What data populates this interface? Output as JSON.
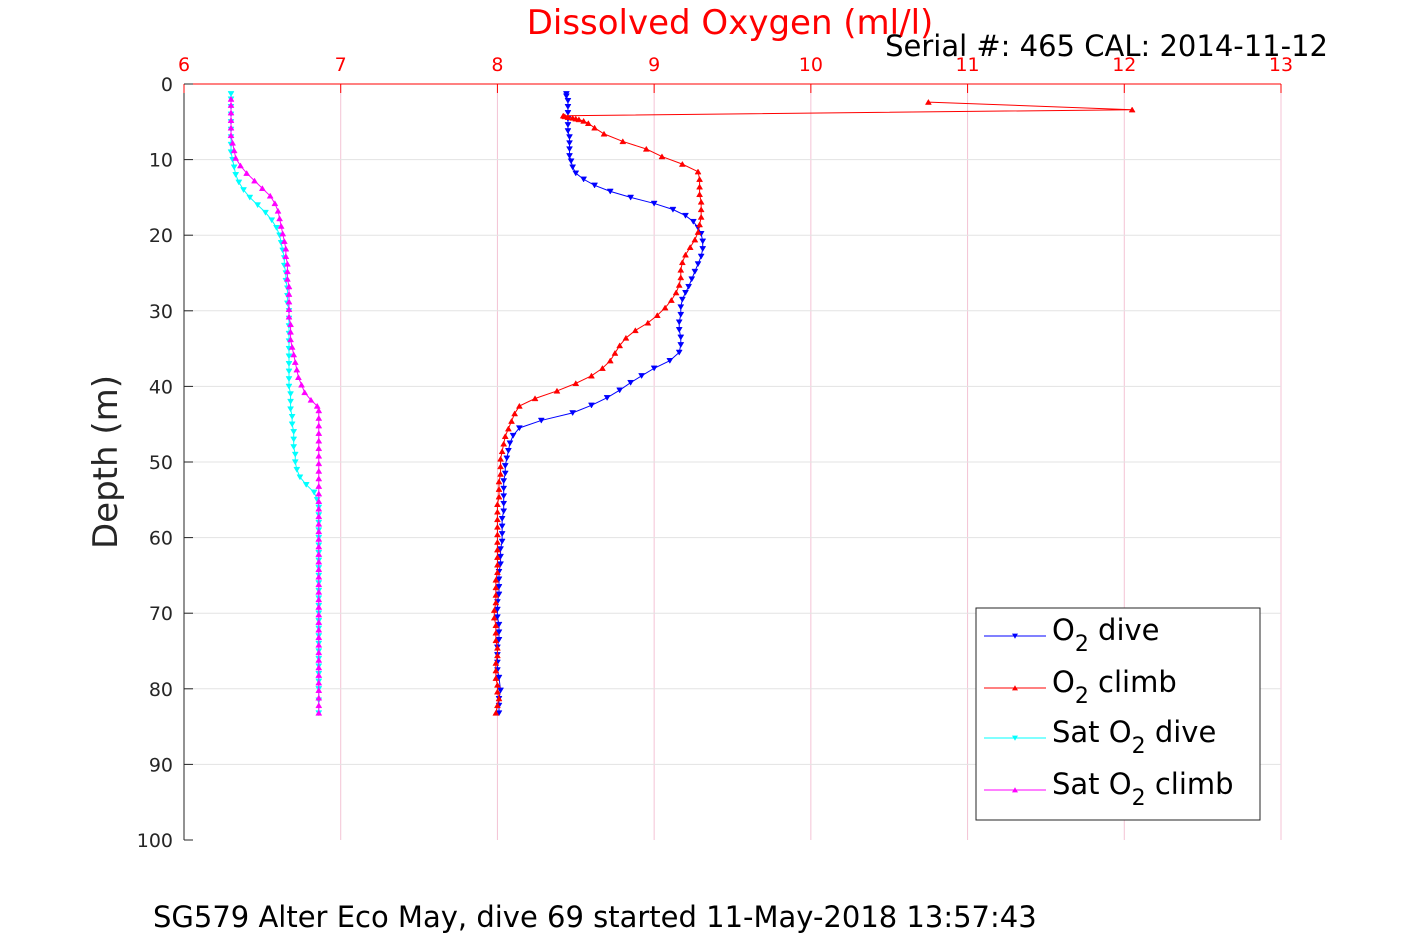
{
  "chart_data": {
    "type": "line",
    "title": "Dissolved Oxygen (ml/l)",
    "subtitle": "Serial #: 465  CAL: 2014-11-12",
    "footer": "SG579 Alter Eco May, dive 69 started 11-May-2018 13:57:43",
    "ylabel": "Depth (m)",
    "xlabel": "",
    "xlim": [
      6,
      13
    ],
    "ylim": [
      0,
      100
    ],
    "y_reversed": true,
    "x_axis_position": "top",
    "x_ticks": [
      6,
      7,
      8,
      9,
      10,
      11,
      12,
      13
    ],
    "x_tick_labels": [
      "6",
      "7",
      "8",
      "9",
      "10",
      "11",
      "12",
      "13"
    ],
    "y_ticks": [
      0,
      10,
      20,
      30,
      40,
      50,
      60,
      70,
      80,
      90,
      100
    ],
    "y_tick_labels": [
      "0",
      "10",
      "20",
      "30",
      "40",
      "50",
      "60",
      "70",
      "80",
      "90",
      "100"
    ],
    "grid": true,
    "legend_position": "bottom-right",
    "colors": {
      "title": "#ff0000",
      "x_tick": "#ff0000",
      "grid": "#f4c3d4",
      "axis": "#000000",
      "o2_dive": "#0000ff",
      "o2_climb": "#ff0000",
      "sat_dive": "#00ffff",
      "sat_climb": "#ff00ff"
    },
    "series": [
      {
        "key": "o2_dive",
        "name_main": "O",
        "name_sub": "2",
        "name_rest": " dive",
        "color": "#0000ff",
        "marker": "down-triangle",
        "x": [
          8.44,
          8.44,
          8.45,
          8.45,
          8.45,
          8.45,
          8.45,
          8.45,
          8.46,
          8.46,
          8.46,
          8.46,
          8.47,
          8.48,
          8.5,
          8.55,
          8.62,
          8.72,
          8.85,
          9.0,
          9.12,
          9.2,
          9.25,
          9.28,
          9.3,
          9.31,
          9.31,
          9.3,
          9.28,
          9.26,
          9.24,
          9.22,
          9.2,
          9.18,
          9.17,
          9.17,
          9.16,
          9.16,
          9.17,
          9.17,
          9.16,
          9.1,
          9.0,
          8.92,
          8.85,
          8.78,
          8.7,
          8.6,
          8.48,
          8.28,
          8.14,
          8.1,
          8.08,
          8.07,
          8.06,
          8.05,
          8.05,
          8.04,
          8.04,
          8.04,
          8.04,
          8.04,
          8.03,
          8.03,
          8.03,
          8.03,
          8.02,
          8.02,
          8.02,
          8.01,
          8.01,
          8.01,
          8.01,
          8.0,
          8.0,
          8.0,
          8.01,
          8.01,
          8.01,
          8.0,
          8.0,
          8.0,
          8.0,
          8.01,
          8.02,
          8.01,
          8.01,
          8.01
        ],
        "y": [
          1.3,
          1.6,
          2.2,
          3.0,
          3.8,
          4.6,
          5.4,
          6.2,
          7.0,
          7.8,
          8.6,
          9.5,
          10.2,
          11.0,
          11.8,
          12.6,
          13.4,
          14.2,
          15.0,
          15.8,
          16.6,
          17.4,
          18.2,
          19.0,
          19.8,
          20.8,
          21.8,
          22.8,
          23.8,
          24.8,
          25.8,
          26.8,
          27.6,
          28.5,
          29.5,
          30.5,
          31.5,
          32.5,
          33.5,
          34.5,
          35.5,
          36.6,
          37.6,
          38.6,
          39.5,
          40.5,
          41.5,
          42.5,
          43.5,
          44.5,
          45.5,
          46.5,
          47.5,
          48.5,
          49.5,
          50.5,
          51.5,
          52.5,
          53.5,
          54.5,
          55.5,
          56.5,
          57.5,
          58.5,
          59.5,
          60.5,
          61.5,
          62.5,
          63.5,
          64.5,
          65.5,
          66.5,
          67.5,
          68.5,
          69.5,
          70.5,
          71.5,
          72.5,
          73.5,
          74.5,
          75.5,
          76.5,
          77.5,
          78.5,
          80.2,
          81.3,
          82.2,
          83.2
        ]
      },
      {
        "key": "o2_climb",
        "name_main": "O",
        "name_sub": "2",
        "name_rest": " climb",
        "color": "#ff0000",
        "marker": "up-triangle",
        "x": [
          7.99,
          8.0,
          8.01,
          8.0,
          8.0,
          7.99,
          7.99,
          7.99,
          8.0,
          8.0,
          7.99,
          7.99,
          7.99,
          7.98,
          7.98,
          7.99,
          7.99,
          7.99,
          7.99,
          8.0,
          8.0,
          8.0,
          8.0,
          8.0,
          8.0,
          8.0,
          8.0,
          8.0,
          8.0,
          8.01,
          8.01,
          8.01,
          8.02,
          8.02,
          8.02,
          8.03,
          8.04,
          8.05,
          8.07,
          8.09,
          8.11,
          8.14,
          8.24,
          8.38,
          8.5,
          8.6,
          8.67,
          8.72,
          8.75,
          8.78,
          8.82,
          8.88,
          8.96,
          9.02,
          9.07,
          9.11,
          9.14,
          9.16,
          9.17,
          9.17,
          9.18,
          9.2,
          9.23,
          9.26,
          9.28,
          9.29,
          9.3,
          9.3,
          9.3,
          9.29,
          9.29,
          9.29,
          9.28,
          9.18,
          9.05,
          8.95,
          8.8,
          8.68,
          8.62,
          8.58,
          8.55,
          8.52,
          8.5,
          8.48,
          8.45,
          8.43,
          8.42,
          12.05,
          10.75
        ],
        "y": [
          83.2,
          82.2,
          81.3,
          80.4,
          79.5,
          78.6,
          77.6,
          76.6,
          75.6,
          74.6,
          73.6,
          72.6,
          71.6,
          70.6,
          69.6,
          68.6,
          67.6,
          66.6,
          65.6,
          64.6,
          63.6,
          62.6,
          61.6,
          60.6,
          59.6,
          58.6,
          57.6,
          56.6,
          55.6,
          54.6,
          53.6,
          52.6,
          51.6,
          50.6,
          49.6,
          48.6,
          47.6,
          46.6,
          45.6,
          44.6,
          43.6,
          42.6,
          41.6,
          40.6,
          39.6,
          38.6,
          37.6,
          36.6,
          35.6,
          34.6,
          33.6,
          32.6,
          31.6,
          30.6,
          29.6,
          28.6,
          27.6,
          26.6,
          25.6,
          24.6,
          23.6,
          22.6,
          21.6,
          20.6,
          19.6,
          18.6,
          17.6,
          16.6,
          15.6,
          14.6,
          13.6,
          12.6,
          11.6,
          10.6,
          9.6,
          8.6,
          7.6,
          6.6,
          5.8,
          5.2,
          4.9,
          4.7,
          4.6,
          4.5,
          4.4,
          4.3,
          4.2,
          3.4,
          2.4
        ]
      },
      {
        "key": "sat_dive",
        "name_main": "Sat O",
        "name_sub": "2",
        "name_rest": " dive",
        "color": "#00ffff",
        "marker": "down-triangle",
        "x": [
          6.3,
          6.3,
          6.3,
          6.3,
          6.3,
          6.3,
          6.3,
          6.3,
          6.3,
          6.31,
          6.32,
          6.33,
          6.35,
          6.38,
          6.42,
          6.47,
          6.52,
          6.56,
          6.59,
          6.61,
          6.62,
          6.63,
          6.64,
          6.64,
          6.65,
          6.65,
          6.66,
          6.66,
          6.66,
          6.67,
          6.67,
          6.67,
          6.67,
          6.67,
          6.67,
          6.67,
          6.67,
          6.67,
          6.67,
          6.67,
          6.68,
          6.68,
          6.68,
          6.69,
          6.69,
          6.7,
          6.7,
          6.7,
          6.71,
          6.71,
          6.72,
          6.74,
          6.78,
          6.83,
          6.85,
          6.86,
          6.86,
          6.86,
          6.86,
          6.86,
          6.86,
          6.86,
          6.86,
          6.86,
          6.86,
          6.86,
          6.86,
          6.86,
          6.86,
          6.86,
          6.86,
          6.86,
          6.86,
          6.86,
          6.86,
          6.86,
          6.86,
          6.86,
          6.86,
          6.86,
          6.86,
          6.86
        ],
        "y": [
          1.3,
          2.0,
          3.0,
          4.0,
          5.0,
          6.0,
          7.0,
          8.0,
          9.0,
          10.0,
          11.0,
          12.0,
          13.0,
          14.0,
          15.0,
          16.0,
          17.0,
          18.0,
          19.0,
          20.0,
          21.0,
          22.0,
          23.0,
          24.0,
          25.0,
          26.0,
          27.0,
          28.0,
          29.0,
          30.0,
          31.0,
          32.0,
          33.0,
          34.0,
          35.0,
          36.0,
          37.0,
          38.0,
          39.0,
          40.0,
          41.0,
          42.0,
          43.0,
          44.0,
          45.0,
          46.0,
          47.0,
          48.0,
          49.0,
          50.0,
          51.0,
          52.0,
          53.0,
          54.0,
          55.0,
          56.0,
          57.0,
          58.0,
          59.0,
          60.0,
          61.0,
          62.0,
          63.0,
          64.0,
          65.0,
          66.0,
          67.0,
          68.0,
          69.0,
          70.0,
          71.0,
          72.0,
          73.0,
          74.0,
          75.0,
          76.0,
          77.0,
          78.0,
          79.0,
          80.0,
          81.5,
          83.2
        ]
      },
      {
        "key": "sat_climb",
        "name_main": "Sat O",
        "name_sub": "2",
        "name_rest": " climb",
        "color": "#ff00ff",
        "marker": "up-triangle",
        "x": [
          6.86,
          6.86,
          6.86,
          6.86,
          6.86,
          6.86,
          6.86,
          6.86,
          6.86,
          6.86,
          6.86,
          6.86,
          6.86,
          6.86,
          6.86,
          6.86,
          6.86,
          6.86,
          6.86,
          6.86,
          6.86,
          6.86,
          6.86,
          6.86,
          6.86,
          6.86,
          6.86,
          6.86,
          6.86,
          6.86,
          6.86,
          6.86,
          6.86,
          6.86,
          6.86,
          6.86,
          6.86,
          6.86,
          6.86,
          6.86,
          6.86,
          6.85,
          6.81,
          6.77,
          6.75,
          6.73,
          6.72,
          6.71,
          6.7,
          6.69,
          6.68,
          6.68,
          6.68,
          6.67,
          6.67,
          6.67,
          6.67,
          6.67,
          6.66,
          6.66,
          6.66,
          6.65,
          6.65,
          6.64,
          6.63,
          6.62,
          6.61,
          6.6,
          6.58,
          6.55,
          6.5,
          6.45,
          6.4,
          6.36,
          6.33,
          6.32,
          6.31,
          6.3,
          6.3,
          6.3,
          6.3,
          6.3,
          6.3
        ],
        "y": [
          83.2,
          82.2,
          81.2,
          80.2,
          79.2,
          78.2,
          77.2,
          76.2,
          75.2,
          74.2,
          73.2,
          72.2,
          71.2,
          70.2,
          69.2,
          68.2,
          67.2,
          66.2,
          65.2,
          64.2,
          63.2,
          62.2,
          61.2,
          60.2,
          59.2,
          58.2,
          57.2,
          56.2,
          55.2,
          54.2,
          53.2,
          52.2,
          51.2,
          50.2,
          49.2,
          48.2,
          47.2,
          46.2,
          45.2,
          44.2,
          43.2,
          42.6,
          41.8,
          40.8,
          39.8,
          38.8,
          37.8,
          36.8,
          35.8,
          34.8,
          33.8,
          32.8,
          31.8,
          30.8,
          29.8,
          28.8,
          27.8,
          26.8,
          25.8,
          24.8,
          23.8,
          22.8,
          21.8,
          20.8,
          19.8,
          18.8,
          17.8,
          16.8,
          15.8,
          14.8,
          13.8,
          12.8,
          11.8,
          10.8,
          9.8,
          8.8,
          7.8,
          6.8,
          5.8,
          4.8,
          3.8,
          2.8,
          2.0
        ]
      }
    ]
  }
}
